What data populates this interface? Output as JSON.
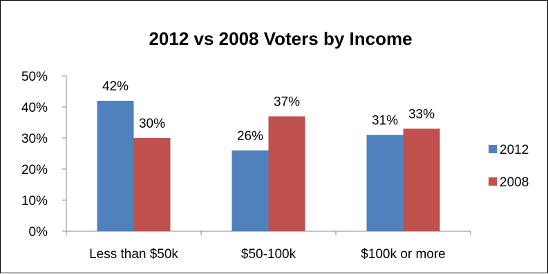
{
  "chart_data": {
    "type": "bar",
    "title": "2012 vs 2008 Voters by Income",
    "categories": [
      "Less than $50k",
      "$50-100k",
      "$100k or more"
    ],
    "series": [
      {
        "name": "2012",
        "values": [
          42,
          26,
          31
        ],
        "labels": [
          "42%",
          "26%",
          "31%"
        ],
        "color": "#4F81BD"
      },
      {
        "name": "2008",
        "values": [
          30,
          37,
          33
        ],
        "labels": [
          "30%",
          "37%",
          "33%"
        ],
        "color": "#C0504D"
      }
    ],
    "ylim": [
      0,
      50
    ],
    "yticks": [
      0,
      10,
      20,
      30,
      40,
      50
    ],
    "ytick_labels": [
      "0%",
      "10%",
      "20%",
      "30%",
      "40%",
      "50%"
    ],
    "grid": false,
    "legend_position": "right"
  }
}
